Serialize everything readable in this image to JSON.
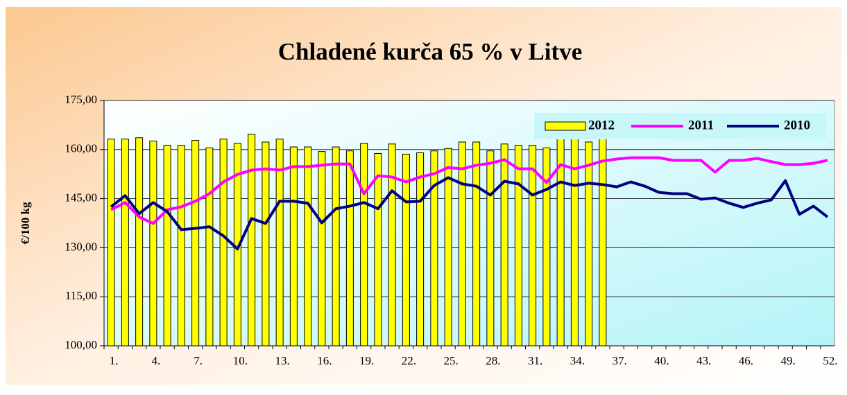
{
  "chart_data": {
    "type": "bar_line",
    "title": "Chladené kurča 65 % v Litve",
    "ylabel": "€/100 kg",
    "categories": [
      "1.",
      null,
      null,
      "4.",
      null,
      null,
      "7.",
      null,
      null,
      "10.",
      null,
      null,
      "13.",
      null,
      null,
      "16.",
      null,
      null,
      "19.",
      null,
      null,
      "22.",
      null,
      null,
      "25.",
      null,
      null,
      "28.",
      null,
      null,
      "31.",
      null,
      null,
      "34.",
      null,
      null,
      "37.",
      null,
      null,
      "40.",
      null,
      null,
      "43.",
      null,
      null,
      "46.",
      null,
      null,
      "49.",
      null,
      null,
      "52."
    ],
    "series": [
      {
        "name": "2012",
        "type": "bar",
        "color": "#ffff00",
        "values": [
          163.2,
          163.2,
          163.6,
          162.6,
          161.3,
          161.3,
          162.8,
          160.5,
          163.2,
          161.9,
          164.7,
          162.3,
          163.2,
          160.8,
          160.8,
          159.4,
          160.8,
          159.6,
          161.9,
          158.8,
          161.7,
          158.6,
          159.0,
          159.6,
          160.3,
          162.3,
          162.3,
          159.6,
          161.7,
          161.3,
          161.3,
          160.5,
          165.5,
          163.4,
          162.3,
          163.4,
          null,
          null,
          null,
          null,
          null,
          null,
          null,
          null,
          null,
          null,
          null,
          null,
          null,
          null,
          null,
          null
        ]
      },
      {
        "name": "2011",
        "type": "line",
        "color": "#ff00ff",
        "values": [
          141.6,
          143.8,
          139.4,
          137.4,
          141.6,
          142.5,
          144.2,
          146.5,
          150.1,
          152.4,
          153.7,
          154.1,
          153.7,
          154.8,
          154.8,
          155.2,
          155.6,
          155.6,
          146.5,
          152.0,
          151.6,
          150.1,
          151.6,
          152.6,
          154.5,
          154.1,
          155.2,
          155.8,
          156.9,
          154.1,
          154.1,
          149.9,
          155.4,
          154.1,
          155.2,
          156.5,
          157.1,
          157.5,
          157.5,
          157.5,
          156.7,
          156.7,
          156.7,
          153.1,
          156.7,
          156.7,
          157.3,
          156.3,
          155.4,
          155.4,
          155.8,
          156.7
        ]
      },
      {
        "name": "2010",
        "type": "line",
        "color": "#000080",
        "values": [
          142.5,
          145.9,
          140.4,
          143.8,
          141.0,
          135.5,
          135.9,
          136.4,
          133.6,
          129.6,
          138.9,
          137.4,
          144.2,
          144.2,
          143.6,
          137.6,
          141.9,
          142.7,
          143.8,
          141.9,
          147.4,
          144.0,
          144.2,
          149.0,
          151.4,
          149.5,
          148.8,
          146.1,
          150.3,
          149.5,
          146.1,
          147.8,
          150.1,
          149.0,
          149.7,
          149.3,
          148.6,
          150.1,
          148.8,
          146.9,
          146.5,
          146.5,
          144.8,
          145.2,
          143.6,
          142.3,
          143.6,
          144.6,
          150.5,
          140.2,
          142.7,
          139.4
        ]
      }
    ],
    "ylim": [
      100,
      175
    ],
    "yticks": [
      {
        "value": 100,
        "label": "100,00"
      },
      {
        "value": 115,
        "label": "115,00"
      },
      {
        "value": 130,
        "label": "130,00"
      },
      {
        "value": 145,
        "label": "145,00"
      },
      {
        "value": 160,
        "label": "160,00"
      },
      {
        "value": 175,
        "label": "175,00"
      }
    ],
    "grid": true,
    "legend": "top-right"
  }
}
